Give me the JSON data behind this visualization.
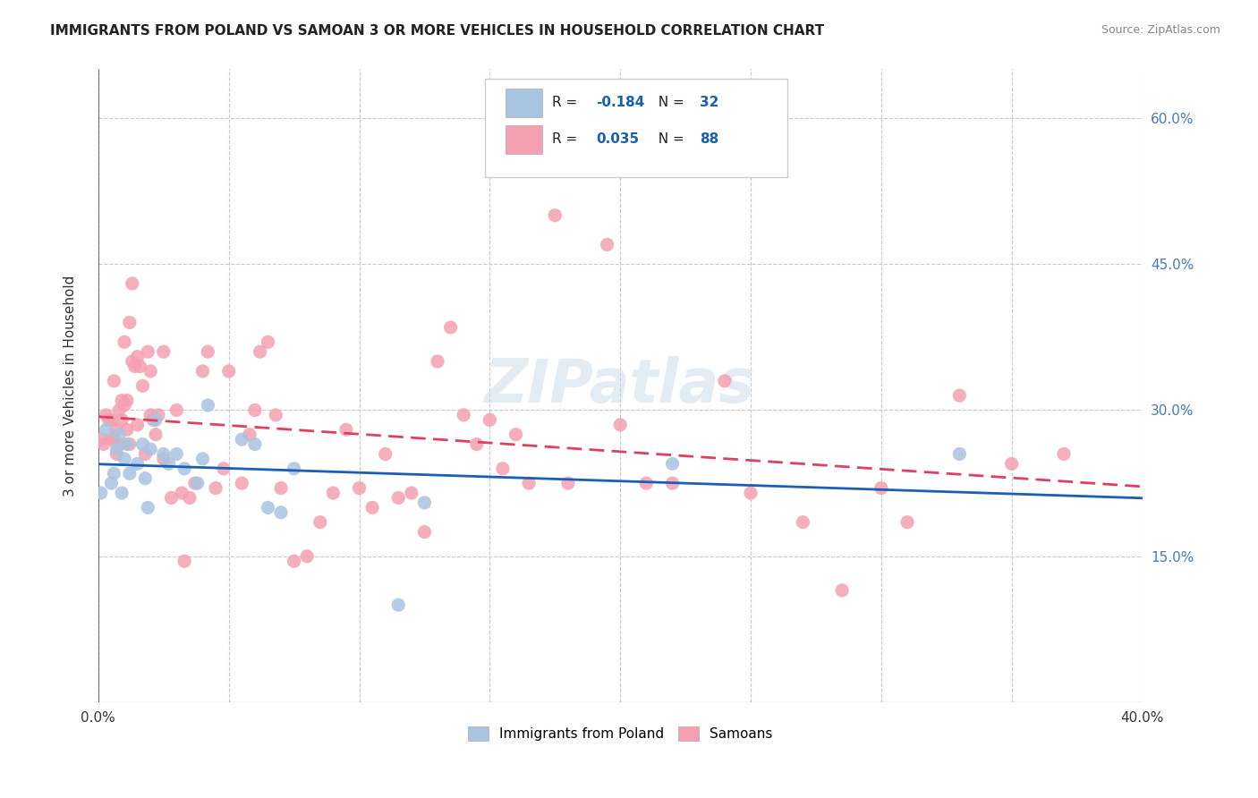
{
  "title": "IMMIGRANTS FROM POLAND VS SAMOAN 3 OR MORE VEHICLES IN HOUSEHOLD CORRELATION CHART",
  "source": "Source: ZipAtlas.com",
  "xlabel_bottom": "",
  "ylabel": "3 or more Vehicles in Household",
  "xmin": 0.0,
  "xmax": 0.4,
  "ymin": 0.0,
  "ymax": 0.65,
  "x_ticks": [
    0.0,
    0.05,
    0.1,
    0.15,
    0.2,
    0.25,
    0.3,
    0.35,
    0.4
  ],
  "x_tick_labels": [
    "0.0%",
    "",
    "",
    "",
    "",
    "",
    "",
    "",
    "40.0%"
  ],
  "y_ticks_right": [
    0.15,
    0.3,
    0.45,
    0.6
  ],
  "y_tick_labels_right": [
    "15.0%",
    "30.0%",
    "45.0%",
    "60.0%"
  ],
  "legend1_R": "-0.184",
  "legend1_N": "32",
  "legend2_R": "0.035",
  "legend2_N": "88",
  "poland_color": "#a8c4e0",
  "samoan_color": "#f4a0b0",
  "poland_line_color": "#1a5fb4",
  "samoan_line_color": "#e04060",
  "grid_color": "#c8c8d8",
  "background_color": "#ffffff",
  "watermark": "ZIPatlas",
  "poland_x": [
    0.001,
    0.003,
    0.005,
    0.006,
    0.007,
    0.008,
    0.009,
    0.01,
    0.011,
    0.012,
    0.015,
    0.017,
    0.018,
    0.019,
    0.02,
    0.022,
    0.025,
    0.027,
    0.03,
    0.033,
    0.038,
    0.04,
    0.042,
    0.055,
    0.06,
    0.065,
    0.07,
    0.075,
    0.115,
    0.125,
    0.22,
    0.33
  ],
  "poland_y": [
    0.215,
    0.28,
    0.225,
    0.235,
    0.26,
    0.275,
    0.215,
    0.25,
    0.265,
    0.235,
    0.245,
    0.265,
    0.23,
    0.2,
    0.26,
    0.29,
    0.255,
    0.245,
    0.255,
    0.24,
    0.225,
    0.25,
    0.305,
    0.27,
    0.265,
    0.2,
    0.195,
    0.24,
    0.1,
    0.205,
    0.245,
    0.255
  ],
  "samoan_x": [
    0.001,
    0.002,
    0.003,
    0.004,
    0.005,
    0.005,
    0.006,
    0.006,
    0.007,
    0.007,
    0.008,
    0.008,
    0.009,
    0.009,
    0.01,
    0.01,
    0.011,
    0.011,
    0.012,
    0.012,
    0.013,
    0.013,
    0.014,
    0.015,
    0.015,
    0.016,
    0.017,
    0.018,
    0.019,
    0.02,
    0.02,
    0.021,
    0.022,
    0.023,
    0.025,
    0.025,
    0.028,
    0.03,
    0.032,
    0.033,
    0.035,
    0.037,
    0.04,
    0.042,
    0.045,
    0.048,
    0.05,
    0.055,
    0.058,
    0.06,
    0.062,
    0.065,
    0.068,
    0.07,
    0.075,
    0.08,
    0.085,
    0.09,
    0.095,
    0.1,
    0.105,
    0.11,
    0.115,
    0.12,
    0.125,
    0.13,
    0.135,
    0.14,
    0.145,
    0.15,
    0.155,
    0.16,
    0.165,
    0.175,
    0.18,
    0.195,
    0.2,
    0.21,
    0.22,
    0.24,
    0.25,
    0.27,
    0.285,
    0.3,
    0.31,
    0.33,
    0.35,
    0.37
  ],
  "samoan_y": [
    0.27,
    0.265,
    0.295,
    0.29,
    0.29,
    0.27,
    0.33,
    0.27,
    0.28,
    0.255,
    0.3,
    0.265,
    0.31,
    0.29,
    0.305,
    0.37,
    0.28,
    0.31,
    0.265,
    0.39,
    0.35,
    0.43,
    0.345,
    0.285,
    0.355,
    0.345,
    0.325,
    0.255,
    0.36,
    0.295,
    0.34,
    0.29,
    0.275,
    0.295,
    0.36,
    0.25,
    0.21,
    0.3,
    0.215,
    0.145,
    0.21,
    0.225,
    0.34,
    0.36,
    0.22,
    0.24,
    0.34,
    0.225,
    0.275,
    0.3,
    0.36,
    0.37,
    0.295,
    0.22,
    0.145,
    0.15,
    0.185,
    0.215,
    0.28,
    0.22,
    0.2,
    0.255,
    0.21,
    0.215,
    0.175,
    0.35,
    0.385,
    0.295,
    0.265,
    0.29,
    0.24,
    0.275,
    0.225,
    0.5,
    0.225,
    0.47,
    0.285,
    0.225,
    0.225,
    0.33,
    0.215,
    0.185,
    0.115,
    0.22,
    0.185,
    0.315,
    0.245,
    0.255
  ]
}
